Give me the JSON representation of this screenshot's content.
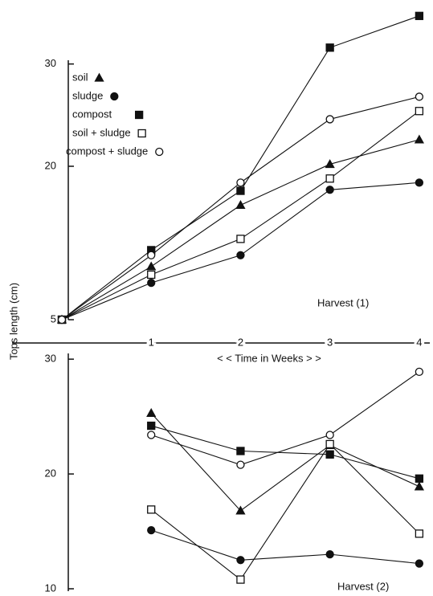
{
  "chart_data": [
    {
      "type": "line",
      "y_label": "Tops length (cm)",
      "x_label": "< < Time in Weeks > >",
      "annotation": "Harvest (1)",
      "x": [
        0,
        1,
        2,
        3,
        4
      ],
      "xlim": [
        0,
        4.1
      ],
      "xticks": [
        1,
        2,
        3,
        4
      ],
      "ylim": [
        5,
        35
      ],
      "yticks": [
        5,
        20,
        30
      ],
      "legend": "upper left",
      "series": [
        {
          "name": "soil",
          "color": "#111111",
          "marker": "triangle",
          "values": [
            5,
            10.2,
            16.2,
            20.2,
            22.6
          ]
        },
        {
          "name": "sludge",
          "color": "#111111",
          "marker": "circle",
          "values": [
            5,
            8.6,
            11.3,
            17.7,
            18.4
          ]
        },
        {
          "name": "compost",
          "color": "#111111",
          "marker": "square",
          "values": [
            5,
            11.8,
            17.6,
            31.6,
            34.7
          ]
        },
        {
          "name": "soil + sludge",
          "color": "#111111",
          "marker": "open-square",
          "values": [
            5,
            9.4,
            12.9,
            18.8,
            25.4
          ]
        },
        {
          "name": "compost + sludge",
          "color": "#111111",
          "marker": "open-circle",
          "values": [
            5,
            11.3,
            18.4,
            24.6,
            26.8
          ]
        }
      ]
    },
    {
      "type": "line",
      "annotation": "Harvest (2)",
      "x": [
        1,
        2,
        3,
        4
      ],
      "xlim": [
        0,
        4.1
      ],
      "ylim": [
        10,
        30.5
      ],
      "yticks": [
        10,
        20,
        30
      ],
      "series": [
        {
          "name": "soil",
          "color": "#111111",
          "marker": "triangle",
          "values": [
            25.3,
            16.8,
            22.5,
            18.9
          ]
        },
        {
          "name": "sludge",
          "color": "#111111",
          "marker": "circle",
          "values": [
            15.1,
            12.5,
            13.0,
            12.2
          ]
        },
        {
          "name": "compost",
          "color": "#111111",
          "marker": "square",
          "values": [
            24.2,
            22.0,
            21.7,
            19.6
          ]
        },
        {
          "name": "soil + sludge",
          "color": "#111111",
          "marker": "open-square",
          "values": [
            16.9,
            10.8,
            22.6,
            14.8
          ]
        },
        {
          "name": "compost + sludge",
          "color": "#111111",
          "marker": "open-circle",
          "values": [
            23.4,
            20.8,
            23.4,
            28.9
          ]
        }
      ]
    }
  ]
}
